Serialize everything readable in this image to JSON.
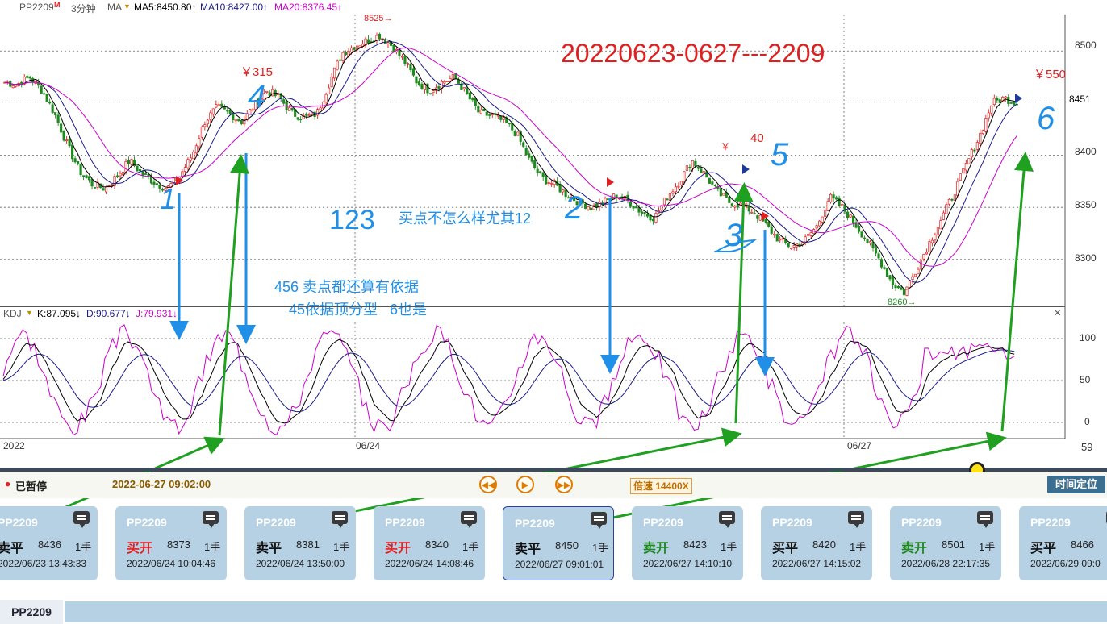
{
  "header": {
    "symbol": "PP2209",
    "symbol_mark": "M",
    "period": "3分钟",
    "ma_label": "MA",
    "ma5": "MA5:8450.80↑",
    "ma10": "MA10:8427.00↑",
    "ma20": "MA20:8376.45↑"
  },
  "colors": {
    "up": "#e02020",
    "down": "#1f8a1f",
    "ma5": "#000000",
    "ma10": "#1a1a8c",
    "ma20": "#cc00cc",
    "annotation_blue": "#1f8fe8",
    "annotation_green": "#20a020",
    "title_red": "#e02020"
  },
  "chart_data": {
    "type": "candlestick",
    "y_ticks": [
      "8500",
      "8451",
      "8400",
      "8350",
      "8300"
    ],
    "ylim": [
      8255,
      8535
    ],
    "grid": true,
    "x_ticks": [
      "2022",
      "06/24",
      "06/27"
    ],
    "high_label": "8525",
    "low_label": "8260",
    "current_price_label": "8451",
    "close_path": [
      8470,
      8468,
      8475,
      8462,
      8440,
      8410,
      8385,
      8372,
      8368,
      8380,
      8395,
      8382,
      8374,
      8368,
      8380,
      8400,
      8432,
      8446,
      8440,
      8432,
      8448,
      8462,
      8455,
      8440,
      8436,
      8440,
      8470,
      8498,
      8505,
      8510,
      8515,
      8505,
      8490,
      8470,
      8462,
      8470,
      8475,
      8458,
      8440,
      8438,
      8432,
      8420,
      8395,
      8378,
      8372,
      8362,
      8355,
      8350,
      8355,
      8362,
      8355,
      8345,
      8340,
      8360,
      8375,
      8395,
      8382,
      8365,
      8355,
      8352,
      8345,
      8332,
      8318,
      8312,
      8318,
      8332,
      8360,
      8350,
      8335,
      8318,
      8300,
      8278,
      8268,
      8292,
      8316,
      8340,
      8365,
      8392,
      8418,
      8450,
      8455,
      8450
    ],
    "ma5": "follows close with slight lag",
    "ma10": "follows close with more lag",
    "ma20": "smoothest average",
    "annotations": {
      "title": "20220623-0627---2209",
      "profit_315": "￥315",
      "profit_40_symbol": "￥",
      "profit_40": "40",
      "profit_550": "￥550",
      "text_123": "123",
      "text_buy": "买点不怎么样尤其12",
      "text_sell": "456 卖点都还算有依据",
      "text_sell2": "45依据顶分型   6也是",
      "hand_numbers": [
        "1",
        "2",
        "3",
        "4",
        "5",
        "6"
      ]
    }
  },
  "kdj": {
    "label": "KDJ",
    "k": "K:87.095↓",
    "d": "D:90.677↓",
    "j": "J:79.931↓",
    "y_ticks": [
      "100",
      "50",
      "0"
    ],
    "right_num": "59",
    "close_icon": "×"
  },
  "controls": {
    "status": "已暂停",
    "datetime": "2022-06-27 09:02:00",
    "speed": "倍速 14400X",
    "time_locate": "时间定位",
    "icons": [
      "rewind-icon",
      "play-icon",
      "fast-forward-icon"
    ]
  },
  "trades": [
    {
      "sym": "PP2209",
      "act": "卖平",
      "color": "#111111",
      "price": "8436",
      "lots": "1手",
      "time": "2022/06/23 13:43:33"
    },
    {
      "sym": "PP2209",
      "act": "买开",
      "color": "#e02020",
      "price": "8373",
      "lots": "1手",
      "time": "2022/06/24 10:04:46"
    },
    {
      "sym": "PP2209",
      "act": "卖平",
      "color": "#111111",
      "price": "8381",
      "lots": "1手",
      "time": "2022/06/24 13:50:00"
    },
    {
      "sym": "PP2209",
      "act": "买开",
      "color": "#e02020",
      "price": "8340",
      "lots": "1手",
      "time": "2022/06/24 14:08:46"
    },
    {
      "sym": "PP2209",
      "act": "卖平",
      "color": "#111111",
      "price": "8450",
      "lots": "1手",
      "time": "2022/06/27 09:01:01"
    },
    {
      "sym": "PP2209",
      "act": "卖开",
      "color": "#1f8a1f",
      "price": "8423",
      "lots": "1手",
      "time": "2022/06/27 14:10:10"
    },
    {
      "sym": "PP2209",
      "act": "买平",
      "color": "#111111",
      "price": "8420",
      "lots": "1手",
      "time": "2022/06/27 14:15:02"
    },
    {
      "sym": "PP2209",
      "act": "卖开",
      "color": "#1f8a1f",
      "price": "8501",
      "lots": "1手",
      "time": "2022/06/28 22:17:35"
    },
    {
      "sym": "PP2209",
      "act": "买平",
      "color": "#111111",
      "price": "8466",
      "lots": "1手",
      "time": "2022/06/29 09:0"
    }
  ],
  "footer": {
    "tab": "PP2209"
  }
}
